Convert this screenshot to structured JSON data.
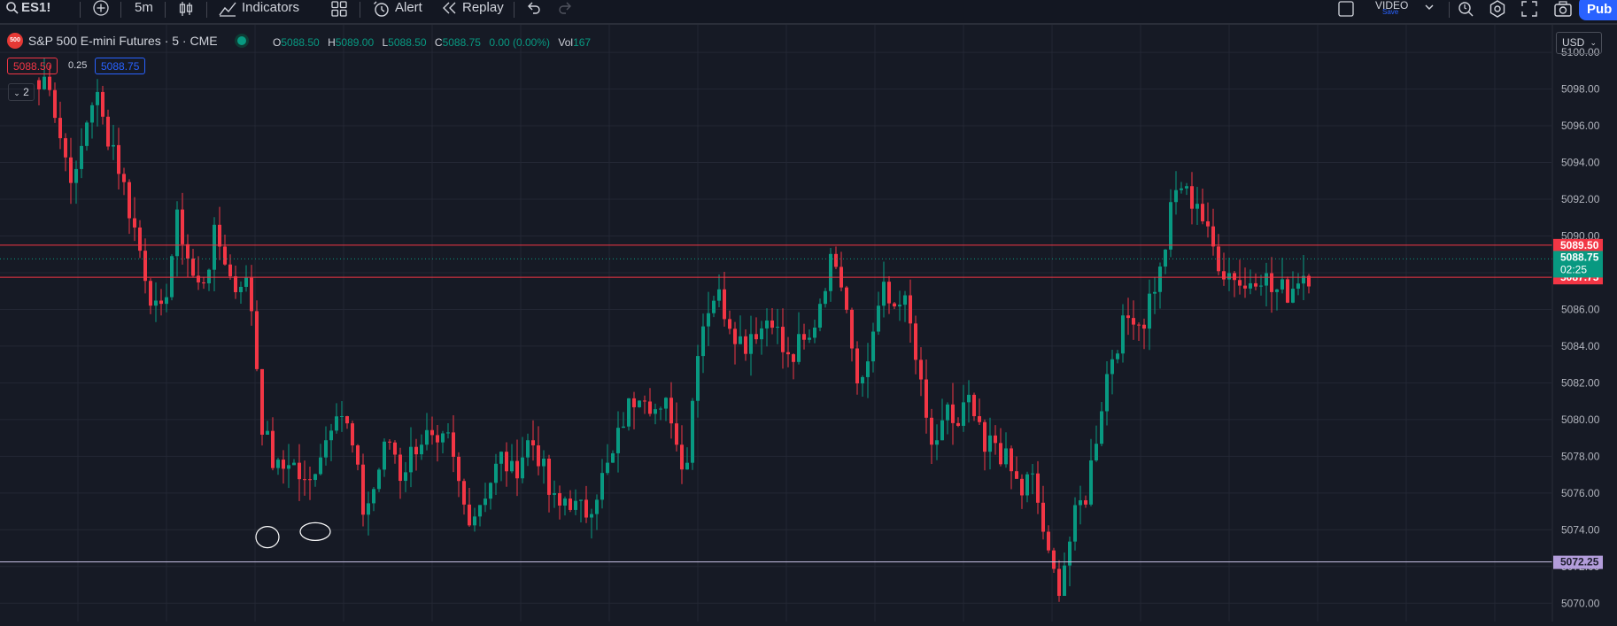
{
  "toolbar": {
    "symbol": "ES1!",
    "interval": "5m",
    "indicators_label": "Indicators",
    "alert_label": "Alert",
    "replay_label": "Replay",
    "layout_name": "VIDEO",
    "layout_status": "Save",
    "publish_label": "Pub"
  },
  "legend": {
    "exchange_logo_text": "500",
    "title": "S&P 500 E-mini Futures · 5 · CME",
    "open_key": "O",
    "open": "5088.50",
    "high_key": "H",
    "high": "5089.00",
    "low_key": "L",
    "low": "5088.50",
    "close_key": "C",
    "close": "5088.75",
    "change": "0.00 (0.00%)",
    "vol_key": "Vol",
    "vol": "167",
    "bid": "5088.50",
    "spread": "0.25",
    "ask": "5088.75",
    "indicator_count": "2"
  },
  "price_scale": {
    "currency": "USD",
    "ticks": [
      "5100.00",
      "5098.00",
      "5096.00",
      "5094.00",
      "5092.00",
      "5090.00",
      "5088.00",
      "5086.00",
      "5084.00",
      "5082.00",
      "5080.00",
      "5078.00",
      "5076.00",
      "5074.00",
      "5072.00",
      "5070.00"
    ],
    "labels": {
      "upper_line": "5089.50",
      "last_price": "5088.75",
      "countdown": "02:25",
      "lower_line": "5087.75",
      "support_line": "5072.25"
    }
  },
  "colors": {
    "background": "#161a25",
    "up": "#089981",
    "down": "#f23645",
    "accent": "#2962ff",
    "support_line": "#b39ddb"
  },
  "chart_data": {
    "type": "candlestick",
    "interval": "5m",
    "ylim": [
      5069,
      5101.5
    ],
    "horizontal_lines": [
      5089.5,
      5087.75,
      5072.25
    ],
    "close_path": [
      5098,
      5099,
      5096,
      5094,
      5093,
      5096,
      5098,
      5096,
      5095,
      5093,
      5091,
      5089,
      5087,
      5085,
      5088,
      5091,
      5089,
      5087,
      5088,
      5090,
      5089,
      5087,
      5088,
      5086,
      5080,
      5078,
      5077,
      5078,
      5077,
      5076,
      5078,
      5079,
      5081,
      5080,
      5078,
      5075,
      5076,
      5078,
      5079,
      5077,
      5078,
      5079,
      5079,
      5078,
      5079,
      5077,
      5075,
      5075,
      5076,
      5077,
      5078,
      5077,
      5078,
      5079,
      5078,
      5076,
      5075,
      5076,
      5075,
      5075,
      5076,
      5077,
      5078,
      5080,
      5081,
      5082,
      5081,
      5080,
      5081,
      5078,
      5078,
      5084,
      5086,
      5087,
      5086,
      5085,
      5084,
      5085,
      5085,
      5086,
      5084,
      5083,
      5084,
      5084,
      5086,
      5088,
      5089,
      5087,
      5083,
      5082,
      5085,
      5087,
      5086,
      5087,
      5085,
      5082,
      5079,
      5078,
      5081,
      5079,
      5081,
      5080,
      5078,
      5079,
      5078,
      5077,
      5076,
      5077,
      5075,
      5072,
      5071,
      5073,
      5075,
      5076,
      5079,
      5082,
      5084,
      5085,
      5086,
      5085,
      5087,
      5088,
      5091,
      5093,
      5092,
      5092,
      5090,
      5089,
      5088,
      5088,
      5087,
      5088,
      5088,
      5087,
      5087,
      5087,
      5088,
      5088
    ],
    "markers": [
      {
        "type": "drawn-circle",
        "x_bar": 43,
        "price": 5073.6
      },
      {
        "type": "drawn-ellipse",
        "x_bar": 52,
        "price": 5073.9
      }
    ]
  }
}
